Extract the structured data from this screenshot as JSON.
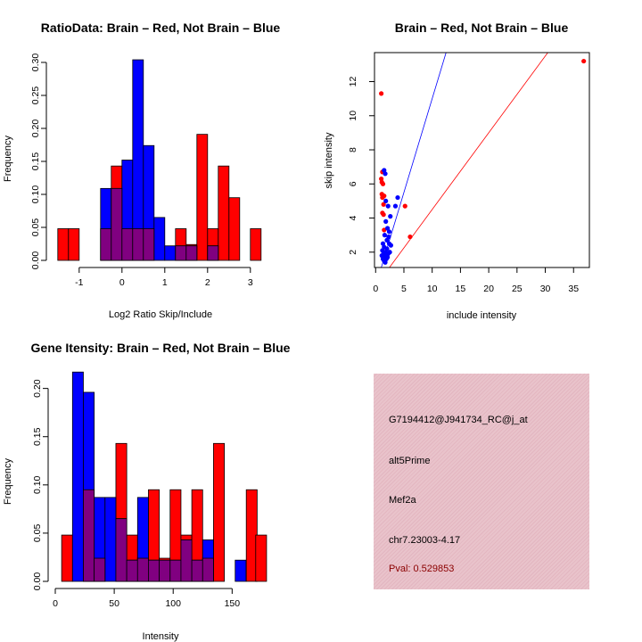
{
  "chart_data": [
    {
      "id": "hist1",
      "type": "bar",
      "subtype": "overlaid-histogram",
      "title": "RatioData: Brain – Red, Not Brain – Blue",
      "xlabel": "Log2 Ratio Skip/Include",
      "ylabel": "Frequency",
      "xlim": [
        -1.6,
        3.4
      ],
      "ylim": [
        0,
        0.3
      ],
      "xticks": [
        -1,
        0,
        1,
        2,
        3
      ],
      "yticks": [
        0.0,
        0.05,
        0.1,
        0.15,
        0.2,
        0.25,
        0.3
      ],
      "bin_width": 0.25,
      "series": [
        {
          "name": "Brain",
          "color": "#ff0000",
          "bins": [
            [
              -1.5,
              0.048
            ],
            [
              -1.25,
              0.048
            ],
            [
              -0.5,
              0.048
            ],
            [
              -0.25,
              0.143
            ],
            [
              0,
              0.048
            ],
            [
              0.25,
              0.048
            ],
            [
              0.5,
              0.048
            ],
            [
              1.25,
              0.048
            ],
            [
              1.5,
              0.024
            ],
            [
              1.75,
              0.191
            ],
            [
              2,
              0.048
            ],
            [
              2.25,
              0.143
            ],
            [
              2.5,
              0.095
            ],
            [
              3,
              0.048
            ]
          ]
        },
        {
          "name": "Not Brain",
          "color": "#0000ff",
          "bins": [
            [
              -0.5,
              0.109
            ],
            [
              -0.25,
              0.109
            ],
            [
              0,
              0.152
            ],
            [
              0.25,
              0.304
            ],
            [
              0.5,
              0.174
            ],
            [
              0.75,
              0.065
            ],
            [
              1,
              0.022
            ],
            [
              1.25,
              0.022
            ],
            [
              1.5,
              0.022
            ],
            [
              2,
              0.022
            ]
          ]
        }
      ]
    },
    {
      "id": "scatter",
      "type": "scatter",
      "title": "Brain – Red, Not Brain – Blue",
      "xlabel": "include intensity",
      "ylabel": "skip intensity",
      "xlim": [
        -0.2,
        37.8
      ],
      "ylim": [
        1.1,
        13.7
      ],
      "xticks": [
        0,
        5,
        10,
        15,
        20,
        25,
        30,
        35
      ],
      "yticks": [
        2,
        4,
        6,
        8,
        10,
        12
      ],
      "series": [
        {
          "name": "Brain",
          "color": "#ff0000",
          "points": [
            [
              1,
              11.3
            ],
            [
              1.2,
              6.7
            ],
            [
              1,
              6.3
            ],
            [
              1.1,
              6.1
            ],
            [
              1.3,
              6.0
            ],
            [
              1.1,
              5.4
            ],
            [
              1.5,
              5.3
            ],
            [
              1.2,
              5.2
            ],
            [
              1.4,
              4.8
            ],
            [
              1.2,
              4.3
            ],
            [
              1.4,
              4.2
            ],
            [
              1.5,
              3.3
            ],
            [
              5.2,
              4.7
            ],
            [
              6.1,
              2.9
            ],
            [
              36.8,
              13.2
            ]
          ]
        },
        {
          "name": "Not Brain",
          "color": "#0000ff",
          "points": [
            [
              1.5,
              6.8
            ],
            [
              1.7,
              6.6
            ],
            [
              3.9,
              5.2
            ],
            [
              1.8,
              5.0
            ],
            [
              2.2,
              4.7
            ],
            [
              3.5,
              4.7
            ],
            [
              2.6,
              4.1
            ],
            [
              1.8,
              3.8
            ],
            [
              2.1,
              3.4
            ],
            [
              2.4,
              3.2
            ],
            [
              1.6,
              3.0
            ],
            [
              2.0,
              2.7
            ],
            [
              2.4,
              2.5
            ],
            [
              1.3,
              2.5
            ],
            [
              2.7,
              2.4
            ],
            [
              1.5,
              2.3
            ],
            [
              2.0,
              2.2
            ],
            [
              1.2,
              2.1
            ],
            [
              1.8,
              2.0
            ],
            [
              1.4,
              1.9
            ],
            [
              2.2,
              1.9
            ],
            [
              1.6,
              1.8
            ],
            [
              1.1,
              1.8
            ],
            [
              2.1,
              1.7
            ],
            [
              1.3,
              1.6
            ],
            [
              1.9,
              1.6
            ],
            [
              1.5,
              1.5
            ],
            [
              2.5,
              2.0
            ],
            [
              1.7,
              1.4
            ],
            [
              2.3,
              2.9
            ]
          ]
        }
      ],
      "lines": [
        {
          "color": "#0000ff",
          "slope": 1.1
        },
        {
          "color": "#ff0000",
          "slope": 0.45
        }
      ]
    },
    {
      "id": "hist2",
      "type": "bar",
      "subtype": "overlaid-histogram",
      "title": "Gene Itensity: Brain – Red, Not Brain – Blue",
      "xlabel": "Intensity",
      "ylabel": "Frequency",
      "xlim": [
        0,
        180
      ],
      "ylim": [
        0,
        0.22
      ],
      "xticks": [
        0,
        50,
        100,
        150
      ],
      "yticks": [
        0.0,
        0.05,
        0.1,
        0.15,
        0.2
      ],
      "bin_width": 9.2,
      "series": [
        {
          "name": "Brain",
          "color": "#ff0000",
          "bins": [
            [
              5.4,
              0.048
            ],
            [
              23.8,
              0.095
            ],
            [
              33.0,
              0.024
            ],
            [
              51.4,
              0.143
            ],
            [
              60.6,
              0.048
            ],
            [
              69.8,
              0.024
            ],
            [
              79.0,
              0.095
            ],
            [
              88.2,
              0.024
            ],
            [
              97.4,
              0.095
            ],
            [
              106.6,
              0.048
            ],
            [
              115.8,
              0.095
            ],
            [
              125.0,
              0.024
            ],
            [
              134.2,
              0.143
            ],
            [
              162.0,
              0.095
            ],
            [
              170.0,
              0.048
            ]
          ]
        },
        {
          "name": "Not Brain",
          "color": "#0000ff",
          "bins": [
            [
              14.6,
              0.217
            ],
            [
              23.8,
              0.196
            ],
            [
              33.0,
              0.087
            ],
            [
              42.2,
              0.087
            ],
            [
              51.4,
              0.065
            ],
            [
              60.6,
              0.022
            ],
            [
              69.8,
              0.087
            ],
            [
              79.0,
              0.022
            ],
            [
              88.2,
              0.022
            ],
            [
              97.4,
              0.022
            ],
            [
              106.6,
              0.043
            ],
            [
              115.8,
              0.022
            ],
            [
              125.0,
              0.043
            ],
            [
              152.6,
              0.022
            ]
          ]
        }
      ]
    }
  ],
  "info": {
    "probe_id": "G7194412@J941734_RC@j_at",
    "event_type": "alt5Prime",
    "gene": "Mef2a",
    "location": "chr7.23003-4.17",
    "pval": "Pval: 0.529853"
  }
}
